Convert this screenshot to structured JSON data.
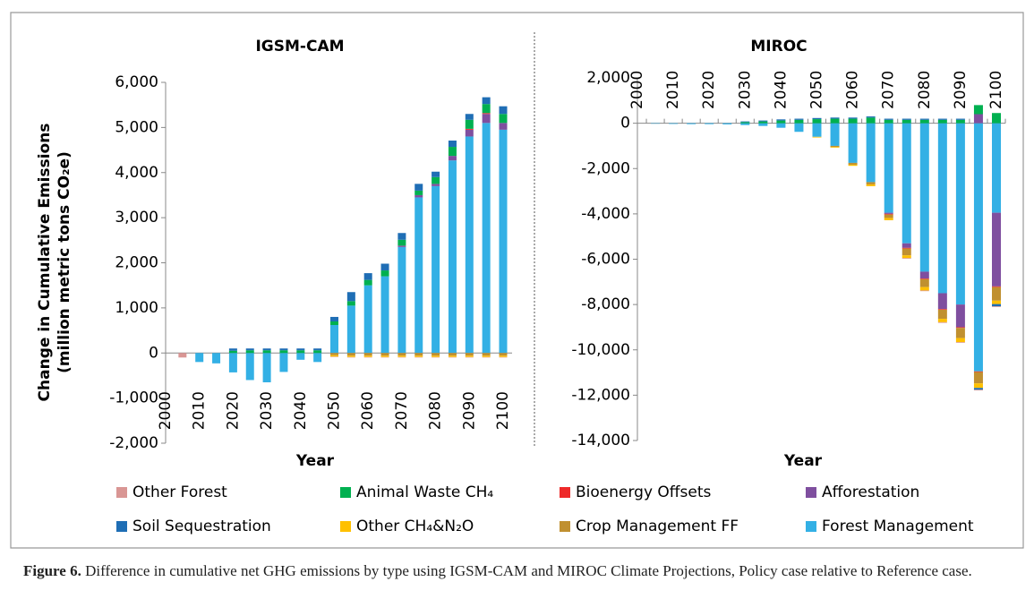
{
  "chart_data": [
    {
      "type": "bar",
      "stacked": true,
      "title": "IGSM-CAM",
      "xlabel": "Year",
      "ylabel": [
        "Change in Cumulative Emissions",
        "(million metric tons CO₂e)"
      ],
      "categories": [
        "2000",
        null,
        "2010",
        null,
        "2020",
        null,
        "2030",
        null,
        "2040",
        null,
        "2050",
        null,
        "2060",
        null,
        "2070",
        null,
        "2080",
        null,
        "2090",
        null,
        "2100"
      ],
      "ylim": [
        -2000,
        6000
      ],
      "yticks": [
        {
          "value": -2000,
          "label": "-2,000"
        },
        {
          "value": -1000,
          "label": "-1,000"
        },
        0,
        {
          "value": 1000,
          "label": "1,000"
        },
        {
          "value": 2000,
          "label": "2,000"
        },
        {
          "value": 3000,
          "label": "3,000"
        },
        {
          "value": 4000,
          "label": "4,000"
        },
        {
          "value": 5000,
          "label": "5,000"
        },
        {
          "value": 6000,
          "label": "6,000"
        }
      ],
      "series": [
        {
          "name": "Other Forest",
          "color": "#d99694",
          "values": [
            0,
            -100,
            0,
            0,
            0,
            0,
            0,
            0,
            0,
            0,
            -10,
            -10,
            -10,
            -10,
            -10,
            -10,
            -10,
            -10,
            -10,
            -10,
            -10
          ]
        },
        {
          "name": "Animal Waste CH₄",
          "color": "#00b050",
          "values": [
            0,
            0,
            0,
            0,
            50,
            60,
            60,
            60,
            60,
            60,
            80,
            100,
            120,
            130,
            130,
            100,
            150,
            200,
            200,
            200,
            200
          ]
        },
        {
          "name": "Bioenergy  Offsets",
          "color": "#ee2a2a",
          "values": [
            0,
            0,
            0,
            0,
            0,
            0,
            0,
            0,
            0,
            0,
            0,
            0,
            0,
            0,
            0,
            0,
            0,
            0,
            20,
            20,
            0
          ]
        },
        {
          "name": "Afforestation",
          "color": "#7f4f9f",
          "values": [
            0,
            0,
            0,
            0,
            0,
            0,
            0,
            0,
            0,
            0,
            0,
            0,
            0,
            0,
            30,
            50,
            50,
            100,
            150,
            200,
            150
          ]
        },
        {
          "name": "Soil Sequestration",
          "color": "#1f6eb5",
          "values": [
            0,
            0,
            0,
            0,
            50,
            40,
            40,
            40,
            40,
            40,
            100,
            200,
            150,
            150,
            150,
            150,
            120,
            140,
            130,
            150,
            170
          ]
        },
        {
          "name": "Other CH₄&N₂O",
          "color": "#ffc000",
          "values": [
            0,
            0,
            0,
            0,
            0,
            0,
            0,
            0,
            0,
            0,
            -30,
            -30,
            -30,
            -30,
            -30,
            -30,
            -30,
            -30,
            -30,
            -30,
            -30
          ]
        },
        {
          "name": "Crop Management FF",
          "color": "#c09030",
          "values": [
            0,
            0,
            0,
            0,
            0,
            0,
            0,
            0,
            0,
            0,
            -50,
            -60,
            -60,
            -60,
            -60,
            -60,
            -60,
            -60,
            -60,
            -60,
            -60
          ]
        },
        {
          "name": "Forest Management",
          "color": "#33b0e5",
          "values": [
            0,
            0,
            -200,
            -230,
            -430,
            -600,
            -650,
            -420,
            -150,
            -200,
            620,
            1050,
            1500,
            1700,
            2350,
            3450,
            3700,
            4270,
            4800,
            5100,
            4950
          ]
        }
      ]
    },
    {
      "type": "bar",
      "stacked": true,
      "title": "MIROC",
      "xlabel": "Year",
      "categories": [
        "2000",
        null,
        "2010",
        null,
        "2020",
        null,
        "2030",
        null,
        "2040",
        null,
        "2050",
        null,
        "2060",
        null,
        "2070",
        null,
        "2080",
        null,
        "2090",
        null,
        "2100"
      ],
      "ylim": [
        -14000,
        2000
      ],
      "yticks": [
        {
          "value": -14000,
          "label": "-14,000"
        },
        {
          "value": -12000,
          "label": "-12,000"
        },
        {
          "value": -10000,
          "label": "-10,000"
        },
        {
          "value": -8000,
          "label": "-8,000"
        },
        {
          "value": -6000,
          "label": "-6,000"
        },
        {
          "value": -4000,
          "label": "-4,000"
        },
        {
          "value": -2000,
          "label": "-2,000"
        },
        0,
        {
          "value": 2000,
          "label": "2,000"
        }
      ],
      "series": [
        {
          "name": "Other Forest",
          "color": "#d99694",
          "values": [
            0,
            0,
            0,
            0,
            0,
            0,
            0,
            0,
            0,
            0,
            0,
            0,
            0,
            0,
            0,
            -30,
            -30,
            -30,
            -30,
            -30,
            -30
          ]
        },
        {
          "name": "Animal Waste CH₄",
          "color": "#00b050",
          "values": [
            0,
            0,
            0,
            0,
            0,
            0,
            50,
            80,
            120,
            150,
            180,
            200,
            200,
            250,
            150,
            150,
            150,
            150,
            150,
            400,
            450
          ]
        },
        {
          "name": "Bioenergy  Offsets",
          "color": "#ee2a2a",
          "values": [
            0,
            0,
            0,
            0,
            0,
            0,
            0,
            0,
            0,
            0,
            0,
            0,
            0,
            0,
            -30,
            -30,
            -30,
            -30,
            -30,
            -30,
            -30
          ]
        },
        {
          "name": "Afforestation",
          "color": "#7f4f9f",
          "values": [
            0,
            0,
            0,
            0,
            0,
            0,
            0,
            0,
            0,
            0,
            0,
            0,
            0,
            0,
            -50,
            -200,
            -300,
            -700,
            -1000,
            400,
            -3250
          ]
        },
        {
          "name": "Soil Sequestration",
          "color": "#1f6eb5",
          "values": [
            0,
            0,
            0,
            0,
            0,
            0,
            30,
            40,
            50,
            50,
            50,
            50,
            50,
            50,
            50,
            50,
            50,
            50,
            50,
            -80,
            -100
          ]
        },
        {
          "name": "Other CH₄&N₂O",
          "color": "#ffc000",
          "values": [
            0,
            0,
            0,
            0,
            0,
            0,
            0,
            0,
            0,
            0,
            -30,
            -30,
            -50,
            -80,
            -100,
            -120,
            -150,
            -150,
            -180,
            -200,
            -150
          ]
        },
        {
          "name": "Crop Management FF",
          "color": "#c09030",
          "values": [
            0,
            0,
            0,
            0,
            0,
            0,
            0,
            0,
            0,
            0,
            0,
            -50,
            -80,
            -100,
            -150,
            -300,
            -350,
            -400,
            -450,
            -500,
            -600
          ]
        },
        {
          "name": "Forest Management",
          "color": "#33b0e5",
          "values": [
            0,
            -20,
            -30,
            -40,
            -40,
            -50,
            -80,
            -120,
            -200,
            -380,
            -600,
            -1000,
            -1750,
            -2600,
            -3950,
            -5300,
            -6550,
            -7500,
            -8000,
            -10950,
            -3950
          ]
        }
      ]
    }
  ],
  "caption": {
    "label": "Figure 6.",
    "text": " Difference in cumulative net GHG emissions by type using IGSM-CAM and MIROC Climate Projections, Policy case relative to Reference case."
  }
}
